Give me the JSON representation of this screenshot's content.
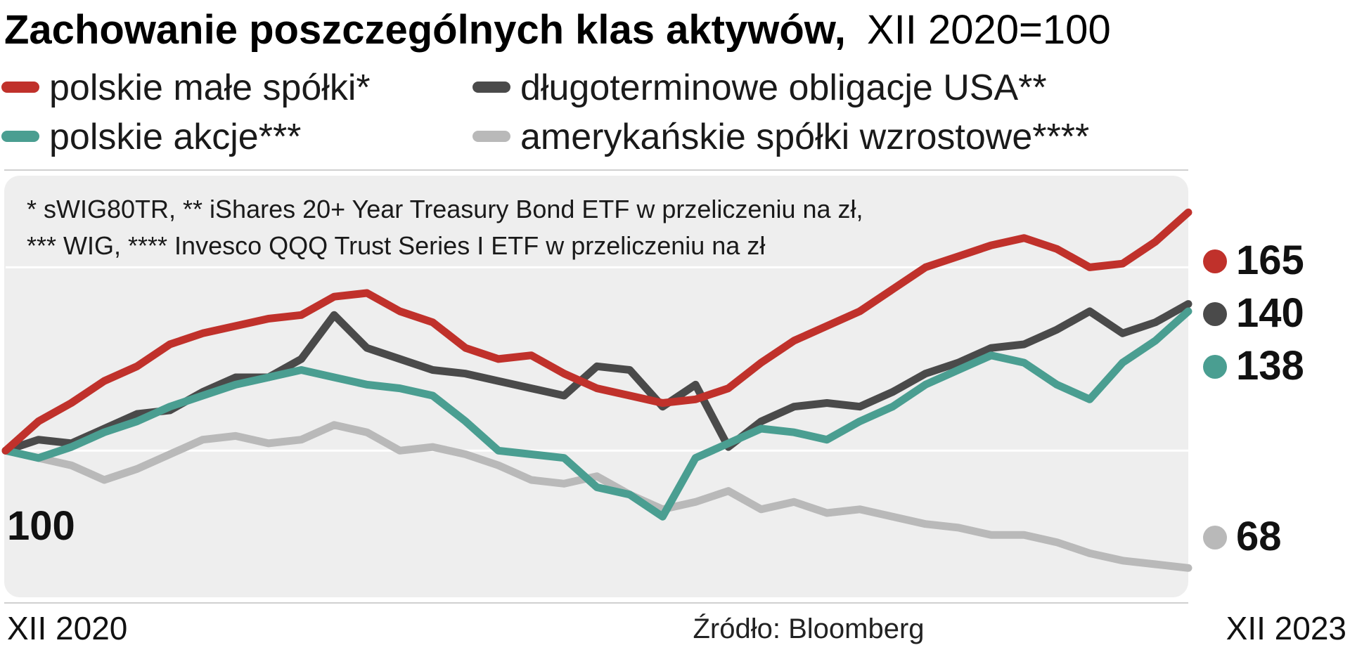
{
  "chart_data": {
    "type": "line",
    "title": "Zachowanie poszczególnych klas aktywów,",
    "subtitle": "XII 2020=100",
    "x_start_label": "XII 2020",
    "x_end_label": "XII 2023",
    "x_start": 0,
    "x_end": 36,
    "ylim": [
      60,
      175
    ],
    "gridlines": [
      100,
      150
    ],
    "baseline_label": "100",
    "footnote_line1": "* sWIG80TR, ** iShares 20+ Year Treasury Bond ETF w przeliczeniu na zł,",
    "footnote_line2": "*** WIG, **** Invesco QQQ Trust Series I ETF w przeliczeniu na zł",
    "source": "Źródło: Bloomberg",
    "legend_placement": "top",
    "x": [
      0,
      1,
      2,
      3,
      4,
      5,
      6,
      7,
      8,
      9,
      10,
      11,
      12,
      13,
      14,
      15,
      16,
      17,
      18,
      19,
      20,
      21,
      22,
      23,
      24,
      25,
      26,
      27,
      28,
      29,
      30,
      31,
      32,
      33,
      34,
      35,
      36
    ],
    "series": [
      {
        "name": "polskie małe spółki*",
        "color": "#c0312b",
        "end_label": "165",
        "values": [
          100,
          108,
          113,
          119,
          123,
          129,
          132,
          134,
          136,
          137,
          142,
          143,
          138,
          135,
          128,
          125,
          126,
          121,
          117,
          115,
          113,
          114,
          117,
          124,
          130,
          134,
          138,
          144,
          150,
          153,
          156,
          158,
          155,
          150,
          151,
          157,
          165
        ]
      },
      {
        "name": "długoterminowe obligacje USA**",
        "color": "#4a4a4a",
        "end_label": "140",
        "values": [
          100,
          103,
          102,
          106,
          110,
          111,
          116,
          120,
          120,
          125,
          137,
          128,
          125,
          122,
          121,
          119,
          117,
          115,
          123,
          122,
          112,
          118,
          101,
          108,
          112,
          113,
          112,
          116,
          121,
          124,
          128,
          129,
          133,
          138,
          132,
          135,
          140
        ]
      },
      {
        "name": "polskie akcje***",
        "color": "#4a9e91",
        "end_label": "138",
        "values": [
          100,
          98,
          101,
          105,
          108,
          112,
          115,
          118,
          120,
          122,
          120,
          118,
          117,
          115,
          108,
          100,
          99,
          98,
          90,
          88,
          82,
          98,
          102,
          106,
          105,
          103,
          108,
          112,
          118,
          122,
          126,
          124,
          118,
          114,
          124,
          130,
          138
        ]
      },
      {
        "name": "amerykańskie spółki wzrostowe****",
        "color": "#b9b9b9",
        "end_label": "68",
        "values": [
          100,
          98,
          96,
          92,
          95,
          99,
          103,
          104,
          102,
          103,
          107,
          105,
          100,
          101,
          99,
          96,
          92,
          91,
          93,
          88,
          84,
          86,
          89,
          84,
          86,
          83,
          84,
          82,
          80,
          79,
          77,
          77,
          75,
          72,
          70,
          69,
          68
        ]
      }
    ]
  }
}
